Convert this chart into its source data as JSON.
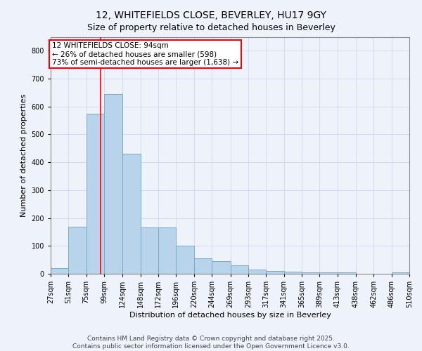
{
  "title": "12, WHITEFIELDS CLOSE, BEVERLEY, HU17 9GY",
  "subtitle": "Size of property relative to detached houses in Beverley",
  "xlabel": "Distribution of detached houses by size in Beverley",
  "ylabel": "Number of detached properties",
  "bar_color": "#b8d4ea",
  "bar_edge_color": "#7aaac8",
  "property_line_color": "red",
  "property_value": 94,
  "annotation_text": "12 WHITEFIELDS CLOSE: 94sqm\n← 26% of detached houses are smaller (598)\n73% of semi-detached houses are larger (1,638) →",
  "annotation_box_color": "white",
  "annotation_box_edge_color": "red",
  "bins": [
    27,
    51,
    75,
    99,
    124,
    148,
    172,
    196,
    220,
    244,
    269,
    293,
    317,
    341,
    365,
    389,
    413,
    438,
    462,
    486,
    510
  ],
  "counts": [
    20,
    170,
    575,
    645,
    430,
    165,
    165,
    100,
    55,
    45,
    30,
    15,
    10,
    8,
    5,
    5,
    4,
    0,
    0,
    5
  ],
  "ylim": [
    0,
    850
  ],
  "yticks": [
    0,
    100,
    200,
    300,
    400,
    500,
    600,
    700,
    800
  ],
  "background_color": "#eef2fb",
  "grid_color": "#c8d0e8",
  "footer_text": "Contains HM Land Registry data © Crown copyright and database right 2025.\nContains public sector information licensed under the Open Government Licence v3.0.",
  "title_fontsize": 10,
  "subtitle_fontsize": 9,
  "xlabel_fontsize": 8,
  "ylabel_fontsize": 8,
  "tick_fontsize": 7,
  "annotation_fontsize": 7.5,
  "footer_fontsize": 6.5
}
